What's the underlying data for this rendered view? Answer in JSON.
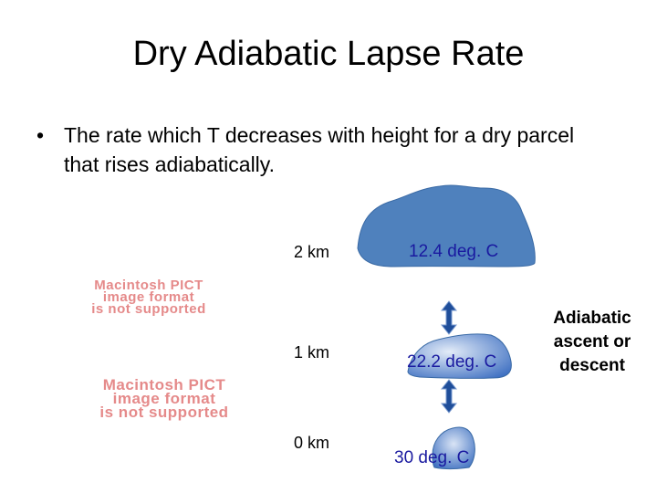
{
  "slide": {
    "title": "Dry Adiabatic Lapse Rate",
    "bullet_symbol": "•",
    "bullet_text": "The rate which T decreases with height for a dry parcel that rises adiabatically."
  },
  "pict_placeholders": [
    {
      "lines": [
        "Macintosh PICT",
        "image format",
        "is not supported"
      ]
    },
    {
      "lines": [
        "Macintosh PICT",
        "image format",
        "is not supported"
      ]
    }
  ],
  "heights": [
    "2 km",
    "1 km",
    "0 km"
  ],
  "temperatures": [
    "12.4 deg. C",
    "22.2 deg. C",
    "30 deg. C"
  ],
  "side_label": {
    "lines": [
      "Adiabatic",
      "ascent or",
      "descent"
    ]
  },
  "colors": {
    "parcel_fill": "#4f81bd",
    "parcel_stroke": "#3a6aa5",
    "arrow": "#1f4e9a",
    "temp_text": "#1a1aa0",
    "pict_text": "#e58a8a"
  },
  "icons": [
    "parcel-blob",
    "double-arrow-icon"
  ]
}
